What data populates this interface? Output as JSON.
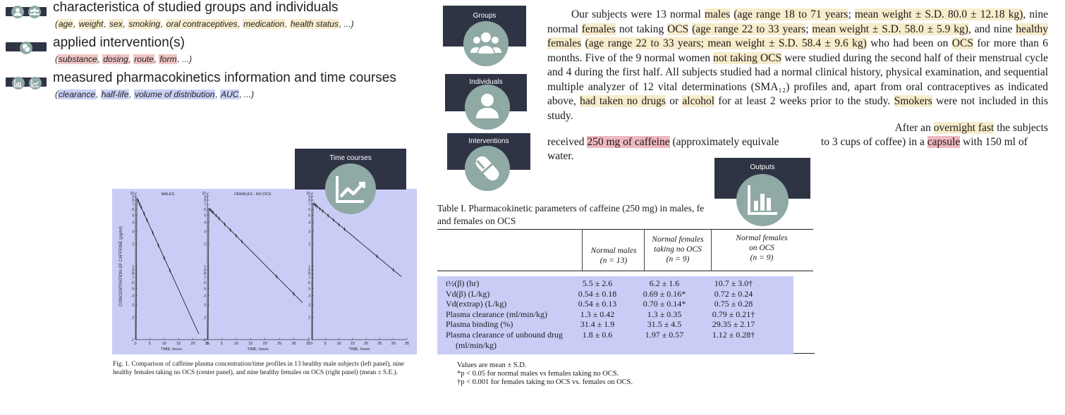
{
  "legend": [
    {
      "title": "characteristica of studied groups and individuals",
      "tags": [
        "age",
        "weight",
        "sex",
        "smoking",
        "oral contraceptives",
        "medication",
        "health status",
        "..."
      ]
    },
    {
      "title": "applied intervention(s)",
      "tags": [
        "substance",
        "dosing",
        "route",
        "form",
        "..."
      ]
    },
    {
      "title": "measured pharmacokinetics information and time courses",
      "tags": [
        "clearance",
        "half-life",
        "volume of distribution",
        "AUC",
        "..."
      ]
    }
  ],
  "cards": {
    "groups": "Groups",
    "individuals": "Individuals",
    "interventions": "Interventions",
    "time_courses": "Time courses",
    "outputs": "Outputs"
  },
  "colors": {
    "card_bg": "#2f3445",
    "icon_circle": "#8fa9a5",
    "highlight_characteristics": "#f7eccb",
    "highlight_intervention": "#efb8c0",
    "highlight_output": "#c9cdf6"
  },
  "passage": {
    "p1": [
      {
        "t": "Our subjects were 13 normal "
      },
      {
        "t": "males",
        "h": "y"
      },
      {
        "t": " "
      },
      {
        "t": "(age range 18 to 71 years",
        "h": "y"
      },
      {
        "t": "; "
      },
      {
        "t": "mean weight ± S.D. 80.0 ± 12.18 kg)",
        "h": "y"
      },
      {
        "t": ", nine normal "
      },
      {
        "t": "females",
        "h": "y"
      },
      {
        "t": " not taking "
      },
      {
        "t": "OCS",
        "h": "y"
      },
      {
        "t": " "
      },
      {
        "t": "(age range 22 to 33 years",
        "h": "y"
      },
      {
        "t": "; "
      },
      {
        "t": "mean weight ± S.D. 58.0 ± 5.9 kg)",
        "h": "y"
      },
      {
        "t": ", and nine "
      },
      {
        "t": "healthy females",
        "h": "y"
      },
      {
        "t": " "
      },
      {
        "t": "(age range 22 to 33 years; mean weight ± S.D. 58.4 ± 9.6 kg)",
        "h": "y"
      },
      {
        "t": " who had been on "
      },
      {
        "t": "OCS",
        "h": "y"
      },
      {
        "t": " for more than 6 months. Five of the 9 normal women "
      },
      {
        "t": "not taking OCS",
        "h": "y"
      },
      {
        "t": " were studied during the second half of their menstrual cycle and 4 during the first half. All subjects studied had a normal clinical history, physical examination, and sequential multiple analyzer of 12 vital determinations (SMA₁₂) profiles and, apart from oral contraceptives as indicated above, "
      },
      {
        "t": "had taken no drugs",
        "h": "y"
      },
      {
        "t": " or "
      },
      {
        "t": "alcohol",
        "h": "y"
      },
      {
        "t": " for at least 2 weeks prior to the study. "
      },
      {
        "t": "Smokers",
        "h": "y"
      },
      {
        "t": " were not included in this study."
      }
    ],
    "p2a": [
      {
        "t": "After an "
      },
      {
        "t": "overnight fast",
        "h": "y"
      },
      {
        "t": " the subjects"
      }
    ],
    "p2b": [
      {
        "t": "received "
      },
      {
        "t": "250 mg of caffeine",
        "h": "r"
      },
      {
        "t": " (approximately equivale"
      }
    ],
    "p2c": [
      {
        "t": "to 3 cups of coffee) in a "
      },
      {
        "t": "capsule",
        "h": "r"
      },
      {
        "t": " with 150 ml of"
      }
    ],
    "p2d": "water."
  },
  "figure": {
    "panels": [
      "MALES",
      "FEMALES - NO OCS",
      "OCS"
    ],
    "ylabel": "CONCENTRATION OF CAFFEINE (µg/ml)",
    "xlabel": "TIME, hours",
    "xticks": [
      "0",
      "5",
      "10",
      "15",
      "20",
      "25",
      "30",
      "35"
    ],
    "yticks": [
      "10",
      "9",
      "8",
      "7",
      "6",
      "5",
      "4",
      "3",
      "2",
      "1",
      ".9",
      ".8",
      ".7",
      ".6",
      ".5",
      ".4",
      ".3",
      ".2",
      ".1"
    ],
    "caption": "Fig. 1. Comparison of caffeine plasma concentration/time profiles in 13 healthy male subjects (left panel), nine healthy females taking no OCS (center panel), and nine healthy females on OCS (right panel) (mean ± S.E.).",
    "caption_prefix": "Fig. 1."
  },
  "table": {
    "caption": "Table I. Pharmacokinetic parameters of caffeine (250 mg) in males, fe",
    "caption2": "and females on OCS",
    "headers": [
      [
        "Normal males",
        "(n = 13)"
      ],
      [
        "Normal females",
        "taking no OCS",
        "(n = 9)"
      ],
      [
        "Normal females",
        "on OCS",
        "(n = 9)"
      ]
    ],
    "rows": [
      {
        "label": "t½(β) (hr)",
        "v": [
          "5.5 ± 2.6",
          "6.2 ± 1.6",
          "10.7 ± 3.0†"
        ]
      },
      {
        "label": "Vd(β) (L/kg)",
        "v": [
          "0.54 ± 0.18",
          "0.69 ± 0.16*",
          "0.72 ± 0.24"
        ]
      },
      {
        "label": "Vd(extrap) (L/kg)",
        "v": [
          "0.54 ± 0.13",
          "0.70 ± 0.14*",
          "0.75 ± 0.28"
        ]
      },
      {
        "label": "Plasma clearance (ml/min/kg)",
        "v": [
          "1.3 ± 0.42",
          "1.3 ± 0.35",
          "0.79 ± 0.21†"
        ]
      },
      {
        "label": "Plasma binding (%)",
        "v": [
          "31.4 ± 1.9",
          "31.5 ± 4.5",
          "29.35 ± 2.17"
        ]
      },
      {
        "label": "Plasma clearance of unbound drug",
        "v": [
          "1.8 ± 0.6",
          "1.97 ± 0.57",
          "1.12 ± 0.28†"
        ]
      },
      {
        "label": "(ml/min/kg)",
        "v": [
          "",
          "",
          ""
        ]
      }
    ],
    "notes": [
      "Values are mean ± S.D.",
      "*p < 0.05 for normal males vs females taking no OCS.",
      "†p < 0.001 for females taking no OCS vs. females on OCS."
    ]
  },
  "icons": {
    "legend_row1": [
      "user-icon",
      "users-icon"
    ],
    "legend_row2": [
      "capsule-icon"
    ],
    "legend_row3": [
      "bar-chart-icon",
      "trend-chart-icon"
    ],
    "groups": "users-icon",
    "individuals": "user-icon",
    "interventions": "capsule-icon",
    "time_courses": "trend-chart-icon",
    "outputs": "bar-chart-icon"
  }
}
